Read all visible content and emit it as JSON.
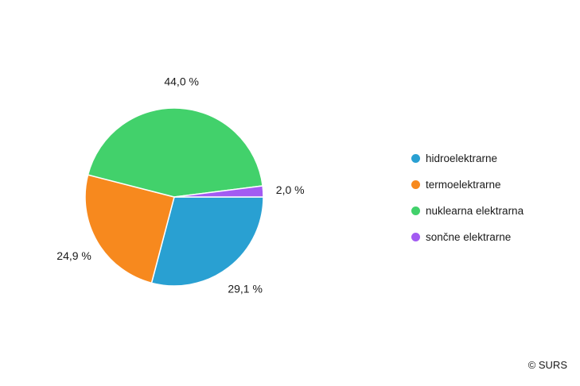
{
  "chart_data": {
    "type": "pie",
    "categories": [
      "hidroelektrarne",
      "termoelektrarne",
      "nuklearna elektrarna",
      "sončne elektrarne"
    ],
    "values": [
      29.1,
      24.9,
      44.0,
      2.0
    ],
    "value_labels": [
      "29,1 %",
      "24,9 %",
      "44,0 %",
      "2,0 %"
    ],
    "colors": [
      "#29a0d2",
      "#f7891e",
      "#42d16b",
      "#a35bf2"
    ],
    "start_angle_deg": 0,
    "direction": "clockwise",
    "legend_placement": "right",
    "title": ""
  },
  "legend": {
    "items": [
      {
        "label": "hidroelektrarne",
        "color": "#29a0d2"
      },
      {
        "label": "termoelektrarne",
        "color": "#f7891e"
      },
      {
        "label": "nuklearna elektrarna",
        "color": "#42d16b"
      },
      {
        "label": "sončne elektrarne",
        "color": "#a35bf2"
      }
    ]
  },
  "credit": "© SURS"
}
